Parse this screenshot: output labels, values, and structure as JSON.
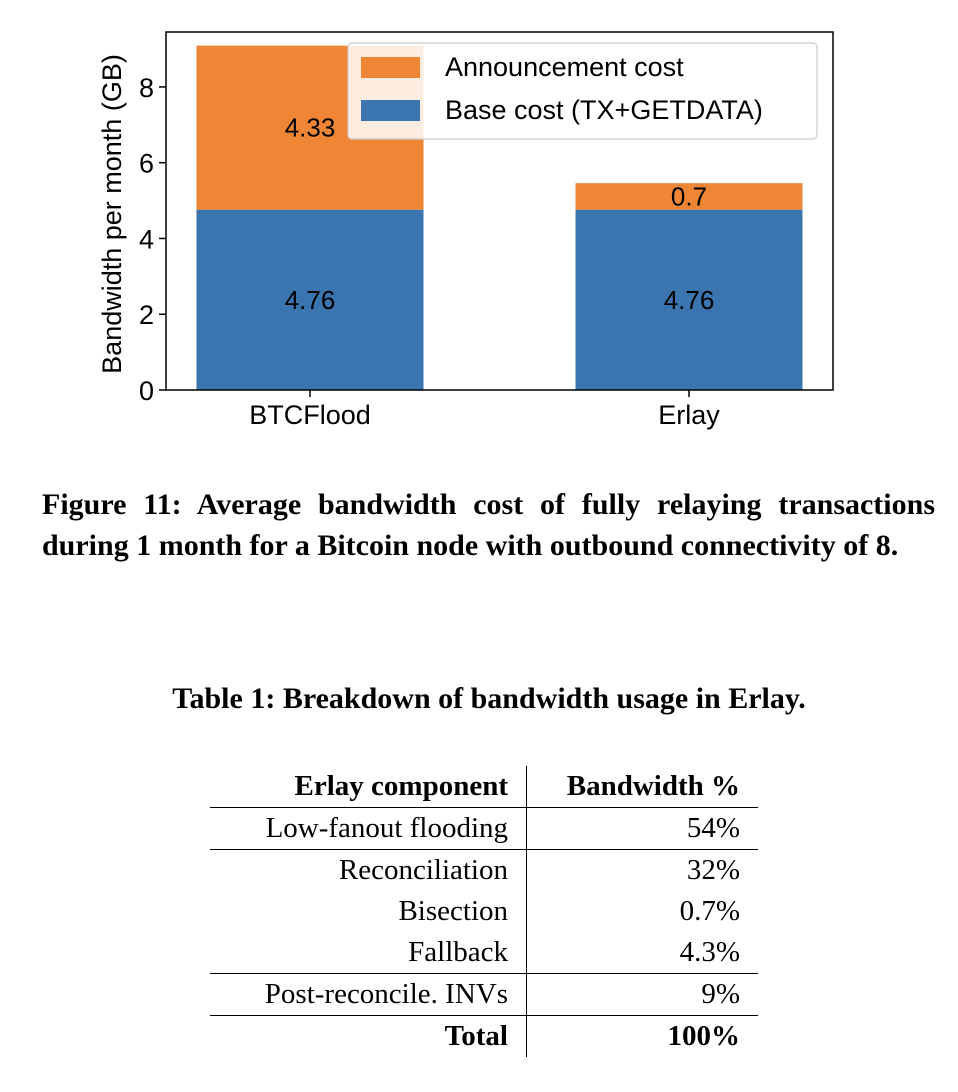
{
  "chart_data": {
    "type": "bar",
    "stacked": true,
    "categories": [
      "BTCFlood",
      "Erlay"
    ],
    "series": [
      {
        "name": "Base cost (TX+GETDATA)",
        "values": [
          4.76,
          4.76
        ],
        "color": "#3b75af",
        "labels": [
          "4.76",
          "4.76"
        ]
      },
      {
        "name": "Announcement cost",
        "values": [
          4.33,
          0.7
        ],
        "color": "#ef8636",
        "labels": [
          "4.33",
          "0.7"
        ]
      }
    ],
    "ylabel": "Bandwidth per month (GB)",
    "xlabel": "",
    "ylim": [
      0,
      9.45
    ],
    "yticks": [
      "0",
      "2",
      "4",
      "6",
      "8"
    ],
    "grid": false,
    "legend_position": "top-right"
  },
  "figure": {
    "caption": "Figure 11: Average bandwidth cost of fully relaying transactions during 1 month for a Bitcoin node with outbound connectivity of 8."
  },
  "table": {
    "title": "Table 1: Breakdown of bandwidth usage in Erlay.",
    "headers": [
      "Erlay component",
      "Bandwidth %"
    ],
    "rows": [
      [
        "Low-fanout flooding",
        "54%"
      ],
      [
        "Reconciliation",
        "32%"
      ],
      [
        "Bisection",
        "0.7%"
      ],
      [
        "Fallback",
        "4.3%"
      ],
      [
        "Post-reconcile. INVs",
        "9%"
      ],
      [
        "Total",
        "100%"
      ]
    ]
  }
}
